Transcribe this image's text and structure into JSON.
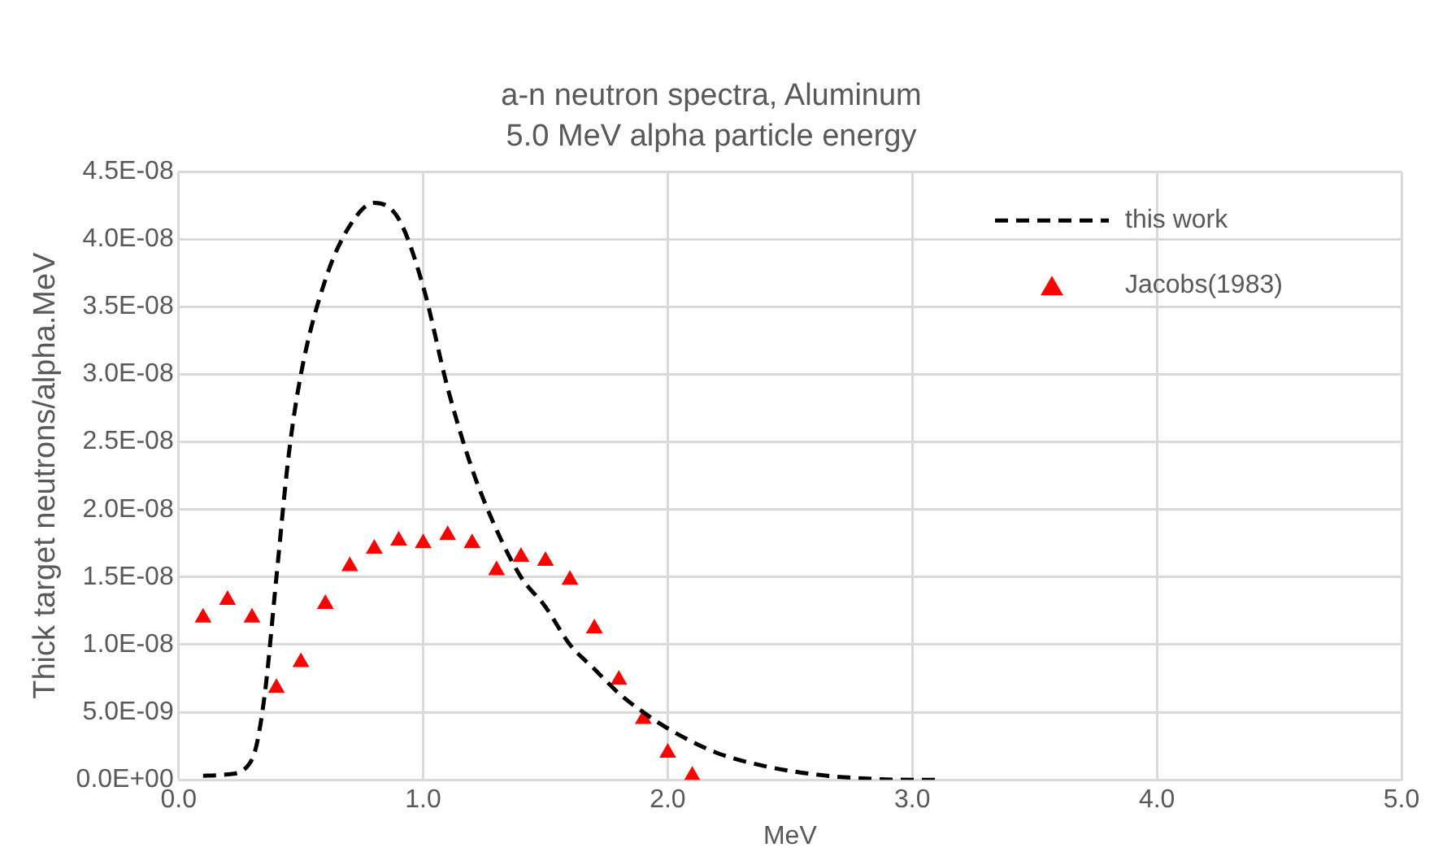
{
  "chart_data": {
    "type": "line",
    "title": "a-n neutron spectra, Aluminum",
    "subtitle": "5.0 MeV alpha particle energy",
    "xlabel": "MeV",
    "ylabel": "Thick target neutrons/alpha.MeV",
    "series": [
      {
        "name": "this work",
        "type": "line",
        "color": "#000000",
        "line_style": "dashed",
        "marker": "none",
        "x": [
          0.1,
          0.2,
          0.3,
          0.35,
          0.4,
          0.45,
          0.5,
          0.6,
          0.7,
          0.8,
          0.9,
          1.0,
          1.1,
          1.2,
          1.3,
          1.4,
          1.5,
          1.6,
          1.7,
          1.8,
          1.9,
          2.0,
          2.2,
          2.4,
          2.6,
          2.8,
          3.0,
          3.1
        ],
        "values": [
          3e-10,
          4e-10,
          1.5e-09,
          6e-09,
          1.5e-08,
          2.4e-08,
          3e-08,
          3.7e-08,
          4.1e-08,
          4.27e-08,
          4.15e-08,
          3.65e-08,
          2.9e-08,
          2.3e-08,
          1.85e-08,
          1.5e-08,
          1.28e-08,
          1e-08,
          8.2e-09,
          6.4e-09,
          5e-09,
          3.8e-09,
          2e-09,
          1e-09,
          4e-10,
          1e-10,
          0,
          0
        ]
      },
      {
        "name": "Jacobs(1983)",
        "type": "scatter",
        "color": "#ff0000",
        "marker": "triangle",
        "x": [
          0.1,
          0.2,
          0.3,
          0.4,
          0.5,
          0.6,
          0.7,
          0.8,
          0.9,
          1.0,
          1.1,
          1.2,
          1.3,
          1.4,
          1.5,
          1.6,
          1.7,
          1.8,
          1.9,
          2.0,
          2.1
        ],
        "values": [
          1.2e-08,
          1.33e-08,
          1.2e-08,
          6.8e-09,
          8.7e-09,
          1.3e-08,
          1.58e-08,
          1.71e-08,
          1.77e-08,
          1.75e-08,
          1.81e-08,
          1.75e-08,
          1.55e-08,
          1.65e-08,
          1.62e-08,
          1.48e-08,
          1.12e-08,
          7.4e-09,
          4.5e-09,
          2e-09,
          3e-10
        ]
      }
    ],
    "xlim": [
      0,
      5
    ],
    "xticks": [
      {
        "value": 0,
        "label": "0.0"
      },
      {
        "value": 1,
        "label": "1.0"
      },
      {
        "value": 2,
        "label": "2.0"
      },
      {
        "value": 3,
        "label": "3.0"
      },
      {
        "value": 4,
        "label": "4.0"
      },
      {
        "value": 5,
        "label": "5.0"
      }
    ],
    "ylim": [
      0,
      4.5e-08
    ],
    "yticks": [
      {
        "value": 0,
        "label": "0.0E+00"
      },
      {
        "value": 5e-09,
        "label": "5.0E-09"
      },
      {
        "value": 1e-08,
        "label": "1.0E-08"
      },
      {
        "value": 1.5e-08,
        "label": "1.5E-08"
      },
      {
        "value": 2e-08,
        "label": "2.0E-08"
      },
      {
        "value": 2.5e-08,
        "label": "2.5E-08"
      },
      {
        "value": 3e-08,
        "label": "3.0E-08"
      },
      {
        "value": 3.5e-08,
        "label": "3.5E-08"
      },
      {
        "value": 4e-08,
        "label": "4.0E-08"
      },
      {
        "value": 4.5e-08,
        "label": "4.5E-08"
      }
    ],
    "grid": true,
    "legend": "top right"
  }
}
